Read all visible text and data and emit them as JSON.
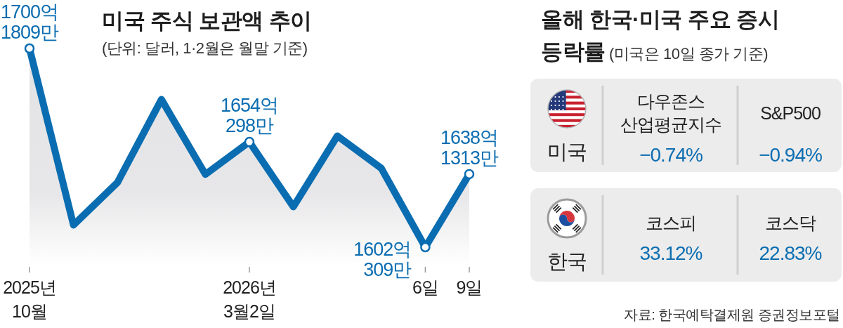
{
  "chart_data": [
    {
      "type": "area",
      "title": "미국 주식 보관액 추이",
      "subtitle": "(단위: 달러, 1·2월은 월말 기준)",
      "categories": [
        "2025년\n10월",
        null,
        null,
        null,
        null,
        "2026년\n3월2일",
        null,
        null,
        null,
        "6일",
        "9일"
      ],
      "series": [
        {
          "color": "#0b6db1",
          "values": [
            1700.1809,
            1613,
            1634,
            1675,
            1638,
            1654.0298,
            1622,
            1657,
            1641,
            1602.0309,
            1638.1313
          ],
          "value_labels": [
            "1700억\n1809만",
            null,
            null,
            null,
            null,
            "1654억\n298만",
            null,
            null,
            null,
            "1602억\n309만",
            "1638억\n1313만"
          ]
        }
      ],
      "tick_labels": "x"
    },
    {
      "type": "other",
      "title": "올해 한국·미국 주요 증시 등락률 (미국은 10일 종가 기준)",
      "y_categories": [
        "미국",
        "한국"
      ],
      "annotations": [
        "다우존스\n산업평균지수",
        "−0.74%",
        "S&P500",
        "−0.94%",
        "코스피",
        "33.12%",
        "코스닥",
        "22.83%",
        "자료: 한국예탁결제원 증권정보포털"
      ]
    }
  ]
}
